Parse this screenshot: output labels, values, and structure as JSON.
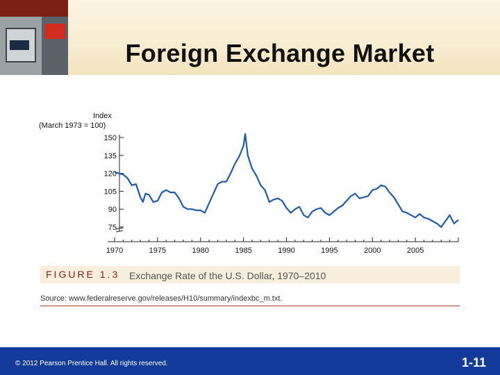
{
  "slide": {
    "title": "Foreign Exchange Market",
    "figure_label": "FIGURE 1.3",
    "figure_title": "Exchange Rate of the U.S. Dollar, 1970–2010",
    "source": "Source: www.federalreserve.gov/releases/H10/summary/indexbc_m.txt.",
    "copyright": "© 2012 Pearson Prentice Hall. All rights reserved.",
    "page_number": "1-11"
  },
  "colors": {
    "line": "#1d5aa8",
    "footer": "#123a9a",
    "accent": "#8a1c14"
  },
  "chart_data": {
    "type": "line",
    "ylabel": "Index",
    "ylabel_note": "(March 1973 = 100)",
    "xlabel": "",
    "xlim": [
      1970,
      2010
    ],
    "ylim": [
      75,
      150
    ],
    "xticks": [
      1970,
      1975,
      1980,
      1985,
      1990,
      1995,
      2000,
      2005
    ],
    "yticks": [
      75,
      90,
      105,
      120,
      135,
      150
    ],
    "series": [
      {
        "x": [
          1970,
          1970.5,
          1971,
          1971.5,
          1972,
          1972.5,
          1973,
          1973.3,
          1973.6,
          1974,
          1974.5,
          1975,
          1975.5,
          1976,
          1976.5,
          1977,
          1977.5,
          1978,
          1978.5,
          1979,
          1979.5,
          1980,
          1980.5,
          1981,
          1981.5,
          1982,
          1982.5,
          1983,
          1983.5,
          1984,
          1984.5,
          1985,
          1985.2,
          1985.5,
          1986,
          1986.5,
          1987,
          1987.5,
          1988,
          1988.5,
          1989,
          1989.5,
          1990,
          1990.5,
          1991,
          1991.5,
          1992,
          1992.5,
          1993,
          1993.5,
          1994,
          1994.5,
          1995,
          1995.5,
          1996,
          1996.5,
          1997,
          1997.5,
          1998,
          1998.5,
          1999,
          1999.5,
          2000,
          2000.5,
          2001,
          2001.5,
          2002,
          2002.5,
          2003,
          2003.5,
          2004,
          2004.5,
          2005,
          2005.5,
          2006,
          2006.5,
          2007,
          2007.5,
          2008,
          2008.5,
          2009,
          2009.5,
          2010
        ],
        "y": [
          121,
          120,
          119,
          116,
          110,
          111,
          100,
          96,
          103,
          102,
          96,
          97,
          104,
          106,
          104,
          104,
          99,
          92,
          90,
          90,
          89,
          89,
          87,
          95,
          103,
          111,
          113,
          113,
          120,
          128,
          134,
          143,
          153,
          135,
          124,
          118,
          110,
          106,
          96,
          98,
          99,
          97,
          91,
          87,
          90,
          92,
          85,
          83,
          88,
          90,
          91,
          87,
          85,
          88,
          91,
          93,
          97,
          101,
          103,
          99,
          100,
          101,
          106,
          107,
          110,
          109,
          104,
          100,
          94,
          88,
          87,
          85,
          83,
          86,
          83,
          82,
          80,
          78,
          75,
          80,
          85,
          78,
          81
        ]
      }
    ]
  }
}
